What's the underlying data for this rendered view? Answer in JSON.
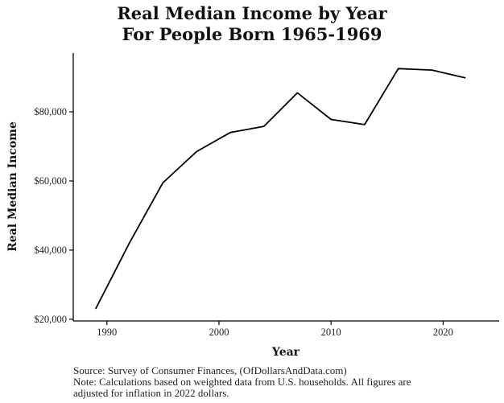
{
  "chart_data": {
    "type": "line",
    "title": "Real Median Income by Year",
    "subtitle": "For People Born 1965-1969",
    "xlabel": "Year",
    "ylabel": "Real Median Income",
    "x": [
      1989,
      1992,
      1995,
      1998,
      2001,
      2004,
      2007,
      2010,
      2013,
      2016,
      2019,
      2022
    ],
    "values": [
      23000,
      42000,
      59500,
      68500,
      74000,
      75800,
      85500,
      77800,
      76300,
      92500,
      92100,
      89800
    ],
    "xlim": [
      1987,
      2025
    ],
    "ylim": [
      19500,
      97000
    ],
    "xticks": [
      1990,
      2000,
      2010,
      2020
    ],
    "xtick_labels": [
      "1990",
      "2000",
      "2010",
      "2020"
    ],
    "yticks": [
      20000,
      40000,
      60000,
      80000
    ],
    "ytick_labels": [
      "$20,000",
      "$40,000",
      "$60,000",
      "$80,000"
    ],
    "grid": false,
    "line_color": "#000000"
  },
  "footer": {
    "source": "Source:  Survey of Consumer Finances, (OfDollarsAndData.com)",
    "note_line1": "Note: Calculations based on weighted data from U.S. households. All figures are",
    "note_line2": "adjusted for inflation in 2022 dollars."
  }
}
